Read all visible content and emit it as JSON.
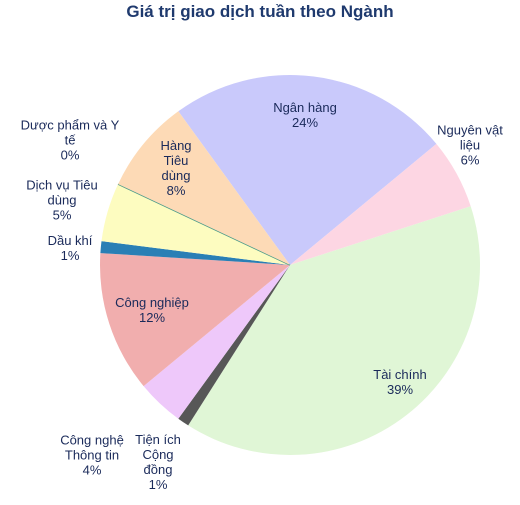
{
  "chart_data": {
    "type": "pie",
    "title": "Giá trị giao dịch tuần theo Ngành",
    "start_angle": -36,
    "categories": [
      "Ngân hàng",
      "Nguyên vật liệu",
      "Tài chính",
      "Tiện ích Cộng đồng",
      "Công nghệ Thông tin",
      "Công nghiệp",
      "Dầu khí",
      "Dịch vụ Tiêu dùng",
      "Dược phẩm và Y tế",
      "Hàng Tiêu dùng"
    ],
    "values": [
      24,
      6,
      39,
      1,
      4,
      12,
      1,
      5,
      0,
      8
    ],
    "value_labels": [
      "24%",
      "6%",
      "39%",
      "1%",
      "4%",
      "12%",
      "1%",
      "5%",
      "0%",
      "8%"
    ],
    "colors": [
      "#c9c9fb",
      "#fdd6e3",
      "#e0f6d6",
      "#575757",
      "#eec8fa",
      "#f1aeae",
      "#2a7fb5",
      "#fdfcc0",
      "#4a9a8a",
      "#fddab6"
    ]
  }
}
